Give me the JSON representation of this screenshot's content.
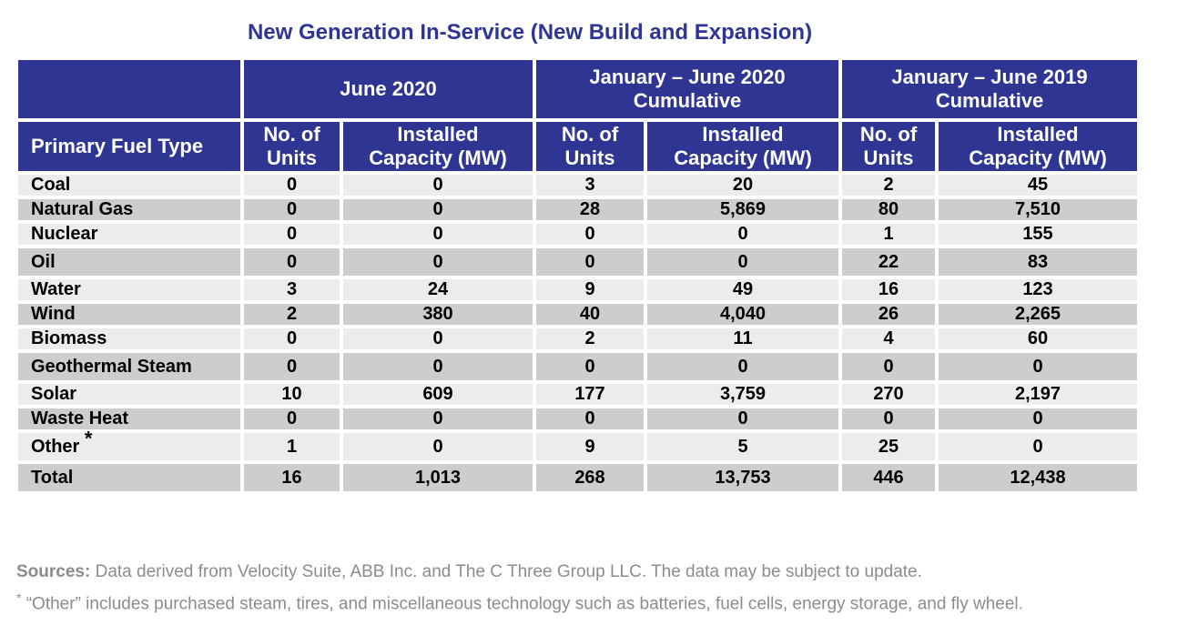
{
  "title": "New Generation In-Service (New Build and Expansion)",
  "group_headers": {
    "g1": "June 2020",
    "g2_line1": "January – June 2020",
    "g2_line2": "Cumulative",
    "g3_line1": "January – June 2019",
    "g3_line2": "Cumulative"
  },
  "column_headers": {
    "fuel": "Primary Fuel Type",
    "units_line1": "No. of",
    "units_line2": "Units",
    "cap_line1": "Installed",
    "cap_line2": "Capacity (MW)"
  },
  "rows": [
    {
      "fuel": "Coal",
      "v": [
        "0",
        "0",
        "3",
        "20",
        "2",
        "45"
      ]
    },
    {
      "fuel": "Natural Gas",
      "v": [
        "0",
        "0",
        "28",
        "5,869",
        "80",
        "7,510"
      ]
    },
    {
      "fuel": "Nuclear",
      "v": [
        "0",
        "0",
        "0",
        "0",
        "1",
        "155"
      ]
    },
    {
      "fuel": "Oil",
      "v": [
        "0",
        "0",
        "0",
        "0",
        "22",
        "83"
      ]
    },
    {
      "fuel": "Water",
      "v": [
        "3",
        "24",
        "9",
        "49",
        "16",
        "123"
      ]
    },
    {
      "fuel": "Wind",
      "v": [
        "2",
        "380",
        "40",
        "4,040",
        "26",
        "2,265"
      ]
    },
    {
      "fuel": "Biomass",
      "v": [
        "0",
        "0",
        "2",
        "11",
        "4",
        "60"
      ]
    },
    {
      "fuel": "Geothermal Steam",
      "v": [
        "0",
        "0",
        "0",
        "0",
        "0",
        "0"
      ]
    },
    {
      "fuel": "Solar",
      "v": [
        "10",
        "609",
        "177",
        "3,759",
        "270",
        "2,197"
      ]
    },
    {
      "fuel": "Waste Heat",
      "v": [
        "0",
        "0",
        "0",
        "0",
        "0",
        "0"
      ]
    },
    {
      "fuel": "Other",
      "star": "*",
      "v": [
        "1",
        "0",
        "9",
        "5",
        "25",
        "0"
      ]
    },
    {
      "fuel": "Total",
      "v": [
        "16",
        "1,013",
        "268",
        "13,753",
        "446",
        "12,438"
      ]
    }
  ],
  "footer": {
    "sources_label": "Sources:",
    "sources_text": "Data derived from Velocity Suite, ABB Inc. and The C Three Group LLC.  The data may be subject to update.",
    "note_star": "*",
    "note_text": "“Other” includes purchased steam, tires, and miscellaneous technology such as batteries, fuel cells, energy storage, and fly wheel."
  },
  "colors": {
    "header_bg": "#2e3592",
    "row_light": "#ececec",
    "row_dark": "#cdcdcd",
    "title": "#2e3592"
  }
}
